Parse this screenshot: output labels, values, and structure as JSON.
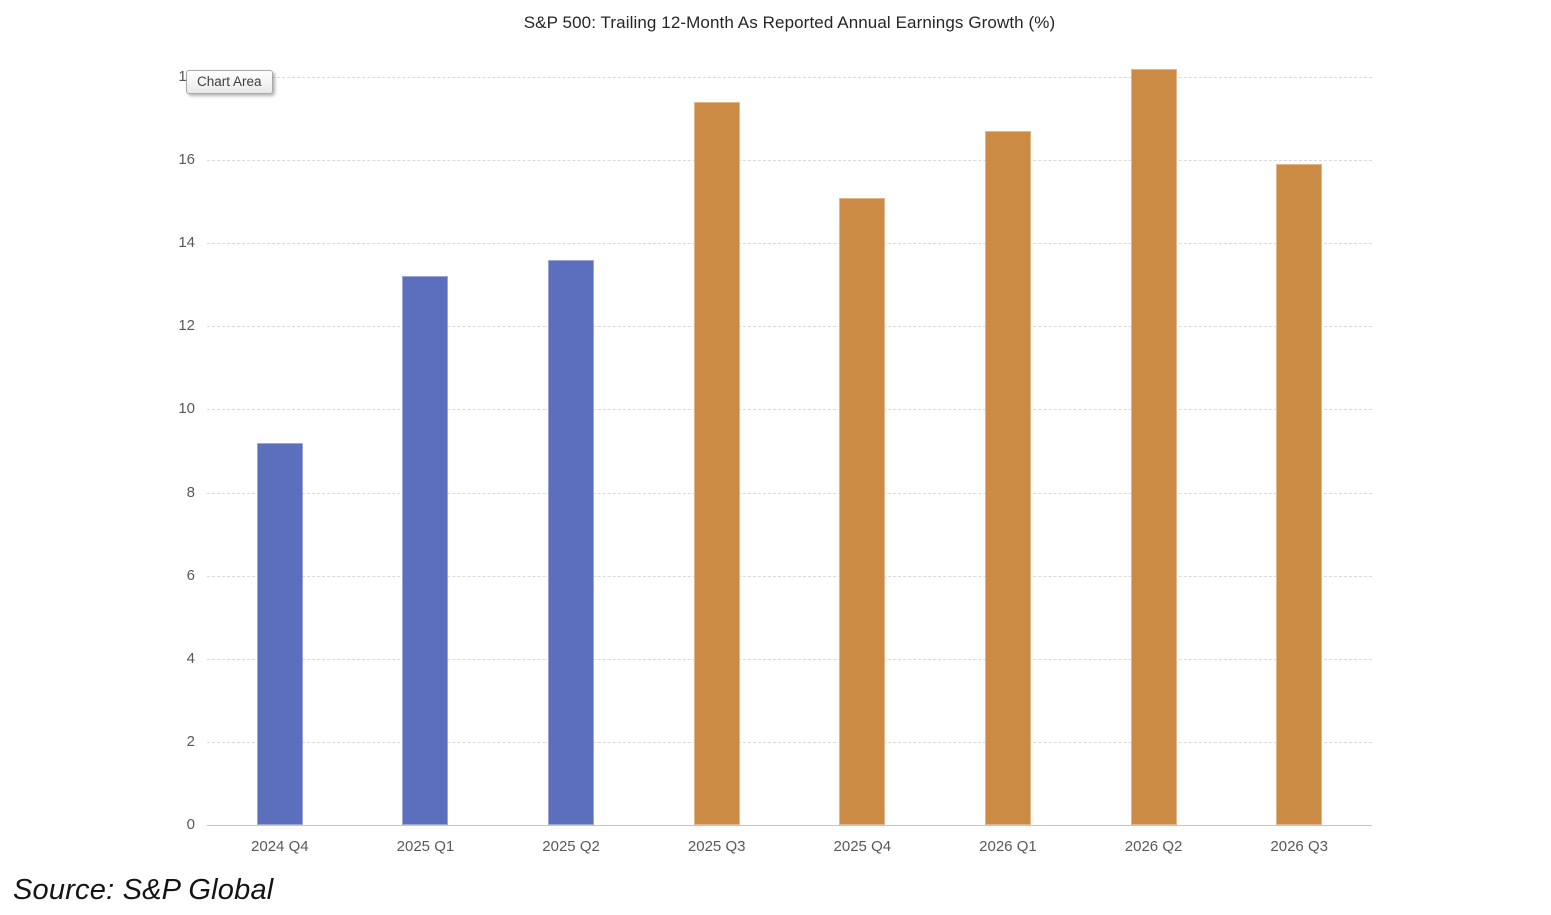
{
  "title": "S&P 500: Trailing 12-Month As Reported Annual Earnings Growth (%)",
  "tooltip": {
    "label": "Chart Area"
  },
  "source_note": "Source: S&P Global",
  "chart_data": {
    "type": "bar",
    "title": "S&P 500: Trailing 12-Month As Reported Annual Earnings Growth (%)",
    "categories": [
      "2024 Q4",
      "2025 Q1",
      "2025 Q2",
      "2025 Q3",
      "2025 Q4",
      "2026 Q1",
      "2026 Q2",
      "2026 Q3"
    ],
    "values": [
      9.2,
      13.2,
      13.6,
      17.4,
      15.1,
      16.7,
      18.2,
      15.9
    ],
    "bar_groups": [
      "actual",
      "actual",
      "actual",
      "estimate",
      "estimate",
      "estimate",
      "estimate",
      "estimate"
    ],
    "palette": {
      "actual": "#5C6FBC",
      "estimate": "#CC8B45"
    },
    "xlabel": "",
    "ylabel": "",
    "ylim": [
      0,
      18
    ],
    "yticks": [
      0,
      2,
      4,
      6,
      8,
      10,
      12,
      14,
      16,
      18
    ],
    "grid": "horizontal-dashed",
    "gridline_color": "#d9d9d9",
    "axis_line_color": "#c6c6c6",
    "tick_label_color": "#595959",
    "legend": "none"
  }
}
